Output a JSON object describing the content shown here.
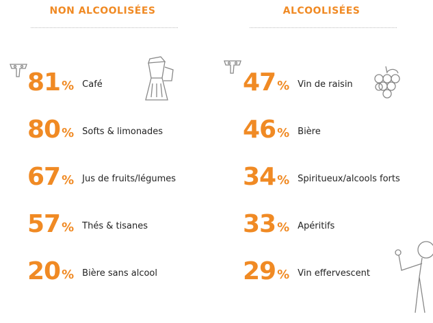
{
  "unit": "%",
  "columns": [
    {
      "title": "NON ALCOOLISÉES",
      "items": [
        {
          "value": 81,
          "label": "Café"
        },
        {
          "value": 80,
          "label": "Softs & limonades"
        },
        {
          "value": 67,
          "label": "Jus de fruits/légumes"
        },
        {
          "value": 57,
          "label": "Thés & tisanes"
        },
        {
          "value": 20,
          "label": "Bière sans alcool"
        }
      ]
    },
    {
      "title": "ALCOOLISÉES",
      "items": [
        {
          "value": 47,
          "label": "Vin de raisin"
        },
        {
          "value": 46,
          "label": "Bière"
        },
        {
          "value": 34,
          "label": "Spiritueux/alcools forts"
        },
        {
          "value": 33,
          "label": "Apéritifs"
        },
        {
          "value": 29,
          "label": "Vin effervescent"
        }
      ]
    }
  ]
}
